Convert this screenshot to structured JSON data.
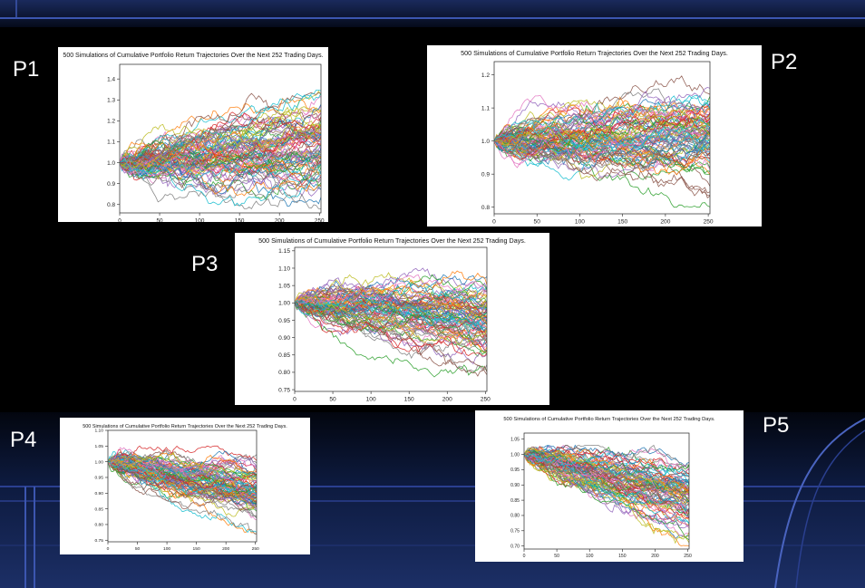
{
  "panel_labels": [
    "P1",
    "P2",
    "P3",
    "P4",
    "P5"
  ],
  "simulations": 500,
  "chart_data": [
    {
      "type": "line",
      "title": "500 Simulations of Cumulative Portfolio Return Trajectories Over the Next 252 Trading Days.",
      "xlabel": "",
      "ylabel": "",
      "xlim": [
        0,
        252
      ],
      "ylim": [
        0.76,
        1.47
      ],
      "x_ticks": [
        0,
        50,
        100,
        150,
        200,
        250
      ],
      "y_ticks": [
        0.8,
        0.9,
        1.0,
        1.1,
        1.2,
        1.3,
        1.4
      ],
      "start_value": 1.0,
      "envelope_at_day_252": {
        "min": 0.78,
        "max": 1.45
      },
      "series_drift_at_day_252": 1.1,
      "grid": false
    },
    {
      "type": "line",
      "title": "500 Simulations of Cumulative Portfolio Return Trajectories Over the Next 252 Trading Days.",
      "xlabel": "",
      "ylabel": "",
      "xlim": [
        0,
        252
      ],
      "ylim": [
        0.78,
        1.24
      ],
      "x_ticks": [
        0,
        50,
        100,
        150,
        200,
        250
      ],
      "y_ticks": [
        0.8,
        0.9,
        1.0,
        1.1,
        1.2
      ],
      "start_value": 1.0,
      "envelope_at_day_252": {
        "min": 0.8,
        "max": 1.23
      },
      "series_drift_at_day_252": 1.02,
      "grid": false
    },
    {
      "type": "line",
      "title": "500 Simulations of Cumulative Portfolio Return Trajectories Over the Next 252 Trading Days.",
      "xlabel": "",
      "ylabel": "",
      "xlim": [
        0,
        252
      ],
      "ylim": [
        0.745,
        1.16
      ],
      "x_ticks": [
        0,
        50,
        100,
        150,
        200,
        250
      ],
      "y_ticks": [
        0.75,
        0.8,
        0.85,
        0.9,
        0.95,
        1.0,
        1.05,
        1.1,
        1.15
      ],
      "start_value": 1.0,
      "envelope_at_day_252": {
        "min": 0.76,
        "max": 1.1
      },
      "series_drift_at_day_252": 0.95,
      "grid": false
    },
    {
      "type": "line",
      "title": "500 Simulations of Cumulative Portfolio Return Trajectories Over the Next 252 Trading Days.",
      "xlabel": "",
      "ylabel": "",
      "xlim": [
        0,
        252
      ],
      "ylim": [
        0.745,
        1.1
      ],
      "x_ticks": [
        0,
        50,
        100,
        150,
        200,
        250
      ],
      "y_ticks": [
        0.75,
        0.8,
        0.85,
        0.9,
        0.95,
        1.0,
        1.05,
        1.1
      ],
      "start_value": 1.0,
      "envelope_at_day_252": {
        "min": 0.77,
        "max": 1.05
      },
      "series_drift_at_day_252": 0.9,
      "grid": false
    },
    {
      "type": "line",
      "title": "500 Simulations of Cumulative Portfolio Return Trajectories Over the Next 252 Trading Days.",
      "xlabel": "",
      "ylabel": "",
      "xlim": [
        0,
        252
      ],
      "ylim": [
        0.69,
        1.07
      ],
      "x_ticks": [
        0,
        50,
        100,
        150,
        200,
        250
      ],
      "y_ticks": [
        0.7,
        0.75,
        0.8,
        0.85,
        0.9,
        0.95,
        1.0,
        1.05
      ],
      "start_value": 1.0,
      "envelope_at_day_252": {
        "min": 0.7,
        "max": 1.03
      },
      "series_drift_at_day_252": 0.86,
      "grid": false
    }
  ],
  "colors": {
    "background": "#000000",
    "frame_line": "#2a3f8f",
    "panel_bg": "#ffffff",
    "series_cycle": [
      "#1f77b4",
      "#ff7f0e",
      "#2ca02c",
      "#d62728",
      "#9467bd",
      "#8c564b",
      "#e377c2",
      "#7f7f7f",
      "#bcbd22",
      "#17becf"
    ]
  }
}
